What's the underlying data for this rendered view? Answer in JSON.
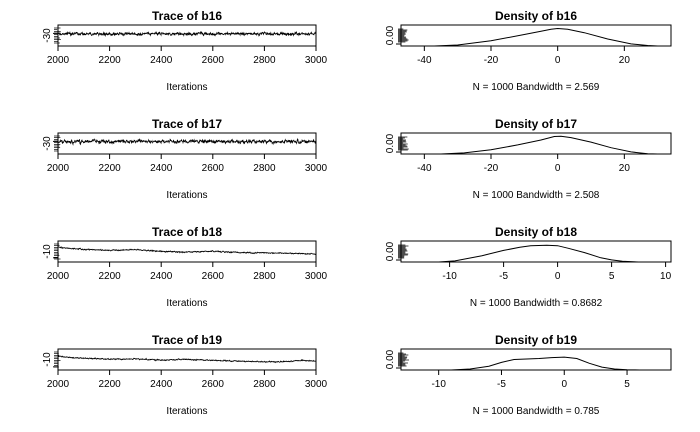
{
  "chart_data": [
    {
      "type": "line",
      "title": "Trace of b16",
      "xlabel": "Iterations",
      "ylabel": "",
      "xlim": [
        2000,
        3000
      ],
      "x_ticks": [
        2000,
        2200,
        2400,
        2600,
        2800,
        3000
      ],
      "y_ticks": [
        -30
      ],
      "ylim": [
        -45,
        -20
      ],
      "series": [
        {
          "n_iter": 1000,
          "mean": -30.5,
          "spread": 2.2,
          "drift": [],
          "seed": 16
        }
      ]
    },
    {
      "type": "line",
      "title": "Density of b16",
      "xlabel": "N = 1000   Bandwidth = 2.569",
      "ylabel": "",
      "xlim": [
        -47,
        34
      ],
      "x_ticks": [
        -40,
        -20,
        0,
        20
      ],
      "y_ticks": [
        0.0
      ],
      "ylim": [
        0,
        0.06
      ],
      "series": [
        {
          "curve": [
            [
              -37,
              0.0
            ],
            [
              -30,
              0.003
            ],
            [
              -20,
              0.015
            ],
            [
              -10,
              0.033
            ],
            [
              -5,
              0.042
            ],
            [
              -2,
              0.048
            ],
            [
              0,
              0.05
            ],
            [
              3,
              0.048
            ],
            [
              8,
              0.038
            ],
            [
              15,
              0.02
            ],
            [
              22,
              0.006
            ],
            [
              27,
              0.0015
            ],
            [
              30,
              0.0
            ]
          ]
        }
      ]
    },
    {
      "type": "line",
      "title": "Trace of b17",
      "xlabel": "Iterations",
      "ylabel": "",
      "xlim": [
        2000,
        3000
      ],
      "x_ticks": [
        2000,
        2200,
        2400,
        2600,
        2800,
        3000
      ],
      "y_ticks": [
        -30
      ],
      "ylim": [
        -45,
        -20
      ],
      "series": [
        {
          "n_iter": 1000,
          "mean": -30.0,
          "spread": 2.6,
          "drift": [],
          "seed": 17
        }
      ]
    },
    {
      "type": "line",
      "title": "Density of b17",
      "xlabel": "N = 1000   Bandwidth = 2.508",
      "ylabel": "",
      "xlim": [
        -47,
        34
      ],
      "x_ticks": [
        -40,
        -20,
        0,
        20
      ],
      "y_ticks": [
        0.0
      ],
      "ylim": [
        0,
        0.06
      ],
      "series": [
        {
          "curve": [
            [
              -35,
              0.0
            ],
            [
              -28,
              0.003
            ],
            [
              -20,
              0.012
            ],
            [
              -12,
              0.026
            ],
            [
              -5,
              0.04
            ],
            [
              -1,
              0.05
            ],
            [
              1,
              0.051
            ],
            [
              4,
              0.047
            ],
            [
              10,
              0.034
            ],
            [
              16,
              0.018
            ],
            [
              22,
              0.006
            ],
            [
              27,
              0.001
            ],
            [
              30,
              0.0
            ]
          ]
        }
      ]
    },
    {
      "type": "line",
      "title": "Trace of b18",
      "xlabel": "Iterations",
      "ylabel": "",
      "xlim": [
        2000,
        3000
      ],
      "x_ticks": [
        2000,
        2200,
        2400,
        2600,
        2800,
        3000
      ],
      "y_ticks": [
        -10
      ],
      "ylim": [
        -14,
        6
      ],
      "series": [
        {
          "n_iter": 1000,
          "mean": -2.0,
          "spread": 0.7,
          "drift": [
            [
              2000,
              2.2
            ],
            [
              2050,
              0.6
            ],
            [
              2200,
              -1.0
            ],
            [
              2300,
              -0.2
            ],
            [
              2400,
              -2.0
            ],
            [
              2500,
              -2.6
            ],
            [
              2600,
              -1.7
            ],
            [
              2700,
              -3.0
            ],
            [
              2800,
              -3.3
            ],
            [
              2900,
              -3.7
            ],
            [
              3000,
              -4.4
            ]
          ],
          "seed": 18
        }
      ]
    },
    {
      "type": "line",
      "title": "Density of b18",
      "xlabel": "N = 1000   Bandwidth = 0.8682",
      "ylabel": "",
      "xlim": [
        -14.5,
        10.5
      ],
      "x_ticks": [
        -10,
        -5,
        0,
        5,
        10
      ],
      "y_ticks": [
        0.0
      ],
      "ylim": [
        0,
        0.2
      ],
      "series": [
        {
          "curve": [
            [
              -11,
              0.0
            ],
            [
              -9.5,
              0.01
            ],
            [
              -7,
              0.06
            ],
            [
              -5,
              0.11
            ],
            [
              -3.5,
              0.14
            ],
            [
              -2.5,
              0.155
            ],
            [
              -1,
              0.16
            ],
            [
              0,
              0.155
            ],
            [
              1,
              0.13
            ],
            [
              2.5,
              0.09
            ],
            [
              4,
              0.04
            ],
            [
              5,
              0.02
            ],
            [
              6,
              0.008
            ],
            [
              7.5,
              0.0
            ]
          ]
        }
      ]
    },
    {
      "type": "line",
      "title": "Trace of b19",
      "xlabel": "Iterations",
      "ylabel": "",
      "xlim": [
        2000,
        3000
      ],
      "x_ticks": [
        2000,
        2200,
        2400,
        2600,
        2800,
        3000
      ],
      "y_ticks": [
        -10
      ],
      "ylim": [
        -13,
        7
      ],
      "series": [
        {
          "n_iter": 1000,
          "mean": -2.0,
          "spread": 0.7,
          "drift": [
            [
              2000,
              2.3
            ],
            [
              2050,
              0.8
            ],
            [
              2200,
              -0.6
            ],
            [
              2300,
              -0.4
            ],
            [
              2400,
              -1.5
            ],
            [
              2500,
              -1.0
            ],
            [
              2600,
              -1.8
            ],
            [
              2700,
              -2.6
            ],
            [
              2800,
              -3.2
            ],
            [
              2880,
              -3.0
            ],
            [
              2950,
              -1.8
            ],
            [
              3000,
              -2.6
            ]
          ],
          "seed": 19
        }
      ]
    },
    {
      "type": "line",
      "title": "Density of b19",
      "xlabel": "N = 1000   Bandwidth = 0.785",
      "ylabel": "",
      "xlim": [
        -13,
        8.5
      ],
      "x_ticks": [
        -10,
        -5,
        0,
        5
      ],
      "y_ticks": [
        0.0
      ],
      "ylim": [
        0,
        0.22
      ],
      "series": [
        {
          "curve": [
            [
              -9,
              0.0
            ],
            [
              -7.5,
              0.01
            ],
            [
              -6,
              0.04
            ],
            [
              -5,
              0.08
            ],
            [
              -4,
              0.11
            ],
            [
              -3,
              0.115
            ],
            [
              -2,
              0.12
            ],
            [
              -1,
              0.13
            ],
            [
              0,
              0.135
            ],
            [
              1,
              0.12
            ],
            [
              2,
              0.07
            ],
            [
              3,
              0.03
            ],
            [
              4,
              0.01
            ],
            [
              5,
              0.003
            ],
            [
              6,
              0.0
            ]
          ]
        }
      ]
    }
  ]
}
